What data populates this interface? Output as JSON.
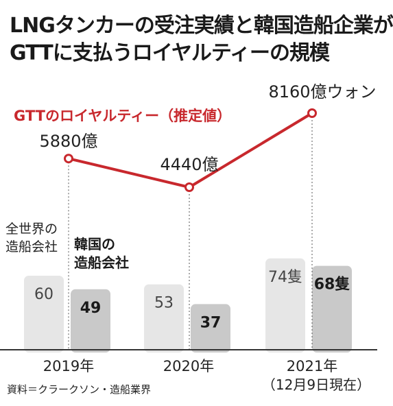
{
  "title_lines": [
    "LNGタンカーの受注実績と韓国造船企業が",
    "GTTに支払うロイヤルティーの規模"
  ],
  "source": "資料＝クラークソン・造船業界",
  "colors": {
    "world_bar": "#e6e6e6",
    "korea_bar": "#c9c9c9",
    "royalty_line": "#c8282d",
    "baseline": "#333333",
    "guide": "#555555"
  },
  "chart_data": {
    "type": "bar",
    "categories": [
      "2019年",
      "2020年",
      "2021年"
    ],
    "category_notes": [
      "",
      "",
      "（12月9日現在）"
    ],
    "series": [
      {
        "name": "全世界の造船会社",
        "values": [
          60,
          53,
          74
        ],
        "labels": [
          "60",
          "53",
          "74隻"
        ]
      },
      {
        "name": "韓国の造船会社",
        "values": [
          49,
          37,
          68
        ],
        "labels": [
          "49",
          "37",
          "68隻"
        ]
      }
    ],
    "line": {
      "name": "GTTのロイヤルティー（推定値）",
      "values": [
        5880,
        4440,
        8160
      ],
      "labels": [
        "5880億",
        "4440億",
        "8160億ウォン"
      ]
    }
  }
}
